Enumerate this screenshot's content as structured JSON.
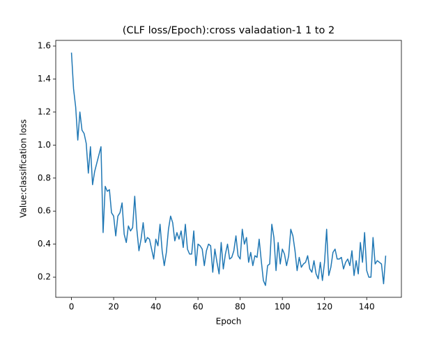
{
  "chart_data": {
    "type": "line",
    "title": "(CLF loss/Epoch):cross valadation-1 1 to 2",
    "xlabel": "Epoch",
    "ylabel": "Value:classification loss",
    "color": "#1f77b4",
    "grid": false,
    "x": [
      0,
      1,
      2,
      3,
      4,
      5,
      6,
      7,
      8,
      9,
      10,
      11,
      12,
      13,
      14,
      15,
      16,
      17,
      18,
      19,
      20,
      21,
      22,
      23,
      24,
      25,
      26,
      27,
      28,
      29,
      30,
      31,
      32,
      33,
      34,
      35,
      36,
      37,
      38,
      39,
      40,
      41,
      42,
      43,
      44,
      45,
      46,
      47,
      48,
      49,
      50,
      51,
      52,
      53,
      54,
      55,
      56,
      57,
      58,
      59,
      60,
      61,
      62,
      63,
      64,
      65,
      66,
      67,
      68,
      69,
      70,
      71,
      72,
      73,
      74,
      75,
      76,
      77,
      78,
      79,
      80,
      81,
      82,
      83,
      84,
      85,
      86,
      87,
      88,
      89,
      90,
      91,
      92,
      93,
      94,
      95,
      96,
      97,
      98,
      99,
      100,
      101,
      102,
      103,
      104,
      105,
      106,
      107,
      108,
      109,
      110,
      111,
      112,
      113,
      114,
      115,
      116,
      117,
      118,
      119,
      120,
      121,
      122,
      123,
      124,
      125,
      126,
      127,
      128,
      129,
      130,
      131,
      132,
      133,
      134,
      135,
      136,
      137,
      138,
      139,
      140,
      141,
      142,
      143,
      144,
      145,
      146,
      147,
      148,
      149
    ],
    "values": [
      1.56,
      1.34,
      1.23,
      1.03,
      1.2,
      1.09,
      1.07,
      1.01,
      0.83,
      0.99,
      0.76,
      0.84,
      0.89,
      0.94,
      0.99,
      0.47,
      0.75,
      0.72,
      0.73,
      0.59,
      0.57,
      0.45,
      0.57,
      0.59,
      0.65,
      0.46,
      0.41,
      0.51,
      0.48,
      0.5,
      0.69,
      0.49,
      0.36,
      0.43,
      0.53,
      0.41,
      0.44,
      0.43,
      0.37,
      0.31,
      0.43,
      0.39,
      0.52,
      0.36,
      0.27,
      0.35,
      0.49,
      0.57,
      0.53,
      0.42,
      0.47,
      0.43,
      0.48,
      0.38,
      0.52,
      0.37,
      0.34,
      0.34,
      0.48,
      0.27,
      0.4,
      0.39,
      0.37,
      0.27,
      0.36,
      0.4,
      0.39,
      0.23,
      0.37,
      0.29,
      0.22,
      0.41,
      0.25,
      0.34,
      0.4,
      0.31,
      0.32,
      0.36,
      0.45,
      0.33,
      0.31,
      0.49,
      0.4,
      0.44,
      0.29,
      0.35,
      0.27,
      0.33,
      0.32,
      0.43,
      0.3,
      0.18,
      0.15,
      0.27,
      0.28,
      0.52,
      0.44,
      0.24,
      0.41,
      0.28,
      0.37,
      0.34,
      0.27,
      0.33,
      0.49,
      0.45,
      0.36,
      0.24,
      0.32,
      0.26,
      0.28,
      0.29,
      0.33,
      0.25,
      0.23,
      0.3,
      0.22,
      0.19,
      0.29,
      0.18,
      0.29,
      0.49,
      0.21,
      0.26,
      0.35,
      0.37,
      0.31,
      0.31,
      0.32,
      0.25,
      0.29,
      0.31,
      0.27,
      0.36,
      0.21,
      0.3,
      0.22,
      0.41,
      0.29,
      0.47,
      0.24,
      0.2,
      0.2,
      0.44,
      0.28,
      0.3,
      0.29,
      0.28,
      0.16,
      0.33
    ],
    "xlim": [
      -7.45,
      156.45
    ],
    "ylim": [
      0.078,
      1.634
    ],
    "xticks": [
      0,
      20,
      40,
      60,
      80,
      100,
      120,
      140
    ],
    "yticks": [
      0.2,
      0.4,
      0.6,
      0.8,
      {
        "value": 1,
        "label": "1.0"
      },
      1.2,
      1.4,
      1.6
    ]
  }
}
